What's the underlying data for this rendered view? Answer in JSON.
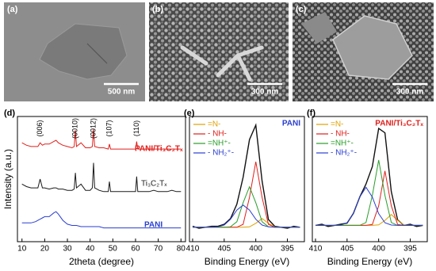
{
  "images": [
    {
      "label": "(a)",
      "scale_bar": "500 nm"
    },
    {
      "label": "(b)",
      "scale_bar": "300 nm"
    },
    {
      "label": "(c)",
      "scale_bar": "300 nm"
    }
  ],
  "chart_data": [
    {
      "type": "line",
      "panel_label": "(d)",
      "x_label": "2theta (degree)",
      "y_label": "Intensity (a.u.)",
      "xlim": [
        8,
        82
      ],
      "xticks": [
        10,
        20,
        30,
        40,
        50,
        60,
        70,
        80
      ],
      "ylim": [
        0,
        10
      ],
      "x": [
        10,
        12,
        14,
        16,
        17,
        18,
        19,
        20,
        22,
        24,
        25,
        26,
        28,
        30,
        32,
        33,
        33.5,
        34,
        36,
        38,
        40,
        41,
        41.5,
        42,
        44,
        46,
        48,
        48.5,
        49,
        50,
        52,
        54,
        56,
        58,
        60,
        60.5,
        61,
        62,
        64,
        66,
        68,
        70,
        72,
        74,
        76,
        78,
        80
      ],
      "annotations": [
        {
          "text": "(006)",
          "x": 18
        },
        {
          "text": "(0010)",
          "x": 33.5
        },
        {
          "text": "(0012)",
          "x": 41.5
        },
        {
          "text": "(107)",
          "x": 48.5
        },
        {
          "text": "(110)",
          "x": 60.5
        }
      ],
      "series": [
        {
          "name": "PANI/Ti₃C₂Tₓ",
          "color": "#e0201c",
          "values": [
            7.9,
            7.7,
            7.6,
            7.6,
            7.6,
            7.9,
            7.7,
            7.8,
            7.8,
            8.0,
            8.1,
            7.9,
            7.7,
            7.6,
            7.5,
            7.6,
            8.9,
            7.6,
            7.9,
            7.5,
            7.5,
            7.6,
            9.0,
            7.6,
            7.5,
            7.5,
            7.4,
            7.8,
            7.4,
            7.4,
            7.4,
            7.4,
            7.4,
            7.4,
            7.4,
            8.0,
            7.4,
            7.4,
            7.4,
            7.4,
            7.4,
            7.4,
            7.4,
            7.4,
            7.4,
            7.4,
            7.4
          ]
        },
        {
          "name": "Ti₃C₂Tₓ",
          "color": "#1a1a1a",
          "values": [
            4.6,
            4.4,
            4.3,
            4.3,
            4.3,
            5.0,
            4.3,
            4.3,
            4.2,
            4.3,
            4.3,
            4.2,
            4.2,
            4.1,
            4.1,
            4.2,
            5.5,
            4.3,
            4.6,
            4.1,
            4.1,
            4.3,
            6.3,
            4.3,
            4.1,
            4.0,
            4.0,
            4.8,
            4.0,
            4.0,
            4.0,
            4.0,
            4.0,
            4.0,
            4.0,
            5.2,
            4.0,
            4.0,
            4.0,
            4.0,
            4.1,
            4.0,
            4.0,
            4.0,
            4.1,
            4.0,
            4.0
          ]
        },
        {
          "name": "PANI",
          "color": "#2a3fd0",
          "values": [
            1.5,
            1.5,
            1.5,
            1.6,
            1.7,
            1.8,
            1.9,
            2.0,
            2.0,
            2.3,
            2.4,
            2.2,
            1.7,
            1.4,
            1.3,
            1.3,
            1.3,
            1.3,
            1.2,
            1.2,
            1.2,
            1.2,
            1.2,
            1.2,
            1.2,
            1.1,
            1.1,
            1.1,
            1.1,
            1.1,
            1.1,
            1.1,
            1.1,
            1.1,
            1.1,
            1.1,
            1.1,
            1.1,
            1.1,
            1.1,
            1.1,
            1.1,
            1.1,
            1.1,
            1.1,
            1.1,
            1.1
          ]
        }
      ]
    },
    {
      "type": "line",
      "panel_label": "(e)",
      "title": "PANI",
      "title_color": "#2a3fd0",
      "x_label": "Binding Energy (eV)",
      "xlim": [
        410.5,
        392.3
      ],
      "xticks": [
        410,
        405,
        400,
        395
      ],
      "ylim": [
        0,
        13
      ],
      "x": [
        410,
        409,
        408,
        407,
        406,
        405,
        404,
        403,
        402,
        401,
        400,
        399,
        398,
        397,
        396,
        395,
        394,
        393
      ],
      "series": [
        {
          "color": "#111111",
          "values": [
            1.6,
            1.4,
            1.5,
            1.6,
            1.6,
            1.8,
            2.4,
            3.9,
            6.7,
            10.6,
            12.1,
            6.3,
            2.3,
            1.6,
            1.5,
            1.4,
            1.6,
            1.5
          ]
        },
        {
          "name": "=N-",
          "color": "#e0a000",
          "values": [
            1.5,
            1.5,
            1.5,
            1.5,
            1.5,
            1.5,
            1.5,
            1.5,
            1.5,
            1.54,
            1.91,
            2.4,
            1.91,
            1.54,
            1.5,
            1.5,
            1.5,
            1.5
          ]
        },
        {
          "name": "- NH-",
          "color": "#e0201c",
          "values": [
            1.5,
            1.5,
            1.5,
            1.5,
            1.5,
            1.5,
            1.5,
            1.5,
            1.8,
            4.6,
            8.3,
            4.6,
            1.8,
            1.5,
            1.5,
            1.5,
            1.5,
            1.5
          ]
        },
        {
          "name": "=NH⁺-",
          "color": "#2a9d2a",
          "values": [
            1.5,
            1.5,
            1.5,
            1.5,
            1.5,
            1.5,
            1.55,
            2.07,
            4.05,
            5.7,
            4.05,
            2.07,
            1.55,
            1.5,
            1.5,
            1.5,
            1.5,
            1.5
          ]
        },
        {
          "name": "- NH₂⁺-",
          "color": "#2a3fd0",
          "values": [
            1.5,
            1.5,
            1.5,
            1.5,
            1.54,
            1.73,
            2.33,
            3.28,
            3.8,
            3.28,
            2.33,
            1.73,
            1.54,
            1.5,
            1.5,
            1.5,
            1.5,
            1.5
          ]
        }
      ]
    },
    {
      "type": "line",
      "panel_label": "(f)",
      "title": "PANI/Ti₃C₂Tₓ",
      "title_color": "#e0201c",
      "x_label": "Binding Energy (eV)",
      "xlim": [
        410.5,
        392.3
      ],
      "xticks": [
        410,
        405,
        400,
        395
      ],
      "ylim": [
        0,
        11.5
      ],
      "x": [
        410,
        409,
        408,
        407,
        406,
        405,
        404,
        403,
        402,
        401,
        400,
        399,
        398,
        397,
        396,
        395,
        394,
        393
      ],
      "series": [
        {
          "color": "#111111",
          "values": [
            1.5,
            1.6,
            1.4,
            1.5,
            1.6,
            1.7,
            2.6,
            4.1,
            5.3,
            6.9,
            10.4,
            10.0,
            4.6,
            2.0,
            1.5,
            1.6,
            1.4,
            1.5
          ]
        },
        {
          "name": "=N-",
          "color": "#e0a000",
          "values": [
            1.5,
            1.5,
            1.5,
            1.5,
            1.5,
            1.5,
            1.5,
            1.5,
            1.5,
            1.5,
            1.54,
            1.96,
            2.5,
            1.96,
            1.54,
            1.5,
            1.5,
            1.5
          ]
        },
        {
          "name": "- NH-",
          "color": "#e0201c",
          "values": [
            1.5,
            1.5,
            1.5,
            1.5,
            1.5,
            1.5,
            1.5,
            1.5,
            1.5,
            1.58,
            3.3,
            6.5,
            3.3,
            1.58,
            1.5,
            1.5,
            1.5,
            1.5
          ]
        },
        {
          "name": "=NH⁺-",
          "color": "#2a9d2a",
          "values": [
            1.5,
            1.5,
            1.5,
            1.5,
            1.5,
            1.5,
            1.5,
            1.5,
            1.76,
            4.25,
            7.5,
            4.25,
            1.76,
            1.5,
            1.5,
            1.5,
            1.5,
            1.5
          ]
        },
        {
          "name": "- NH₂⁺-",
          "color": "#2a3fd0",
          "values": [
            1.5,
            1.5,
            1.5,
            1.5,
            1.53,
            1.74,
            2.57,
            4.1,
            5.0,
            4.1,
            2.57,
            1.74,
            1.53,
            1.5,
            1.5,
            1.5,
            1.5,
            1.5
          ]
        }
      ]
    }
  ]
}
